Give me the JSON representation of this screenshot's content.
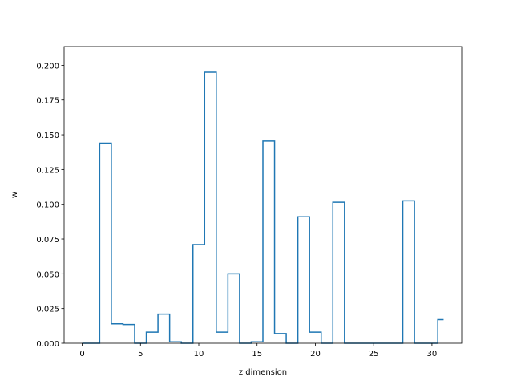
{
  "chart_data": {
    "type": "line",
    "style": "step",
    "xlabel": "z dimension",
    "ylabel": "w",
    "xlim": [
      -1.55,
      32.55
    ],
    "ylim": [
      0,
      0.2135
    ],
    "xticks": [
      0,
      5,
      10,
      15,
      20,
      25,
      30
    ],
    "xtick_labels": [
      "0",
      "5",
      "10",
      "15",
      "20",
      "25",
      "30"
    ],
    "yticks": [
      0,
      0.025,
      0.05,
      0.075,
      0.1,
      0.125,
      0.15,
      0.175,
      0.2
    ],
    "ytick_labels": [
      "0.000",
      "0.025",
      "0.050",
      "0.075",
      "0.100",
      "0.125",
      "0.150",
      "0.175",
      "0.200"
    ],
    "grid": false,
    "line_color": "#1f77b4",
    "x": [
      0,
      1,
      2,
      3,
      4,
      5,
      6,
      7,
      8,
      9,
      10,
      11,
      12,
      13,
      14,
      15,
      16,
      17,
      18,
      19,
      20,
      21,
      22,
      23,
      24,
      25,
      26,
      27,
      28,
      29,
      30,
      31
    ],
    "values": [
      0.0,
      0.0,
      0.144,
      0.014,
      0.0135,
      0.0,
      0.008,
      0.021,
      0.001,
      0.0,
      0.071,
      0.195,
      0.008,
      0.05,
      0.0,
      0.001,
      0.1455,
      0.007,
      0.0,
      0.091,
      0.008,
      0.0,
      0.1015,
      0.0,
      0.0,
      0.0,
      0.0,
      0.0,
      0.1025,
      0.0,
      0.0,
      0.017
    ]
  }
}
